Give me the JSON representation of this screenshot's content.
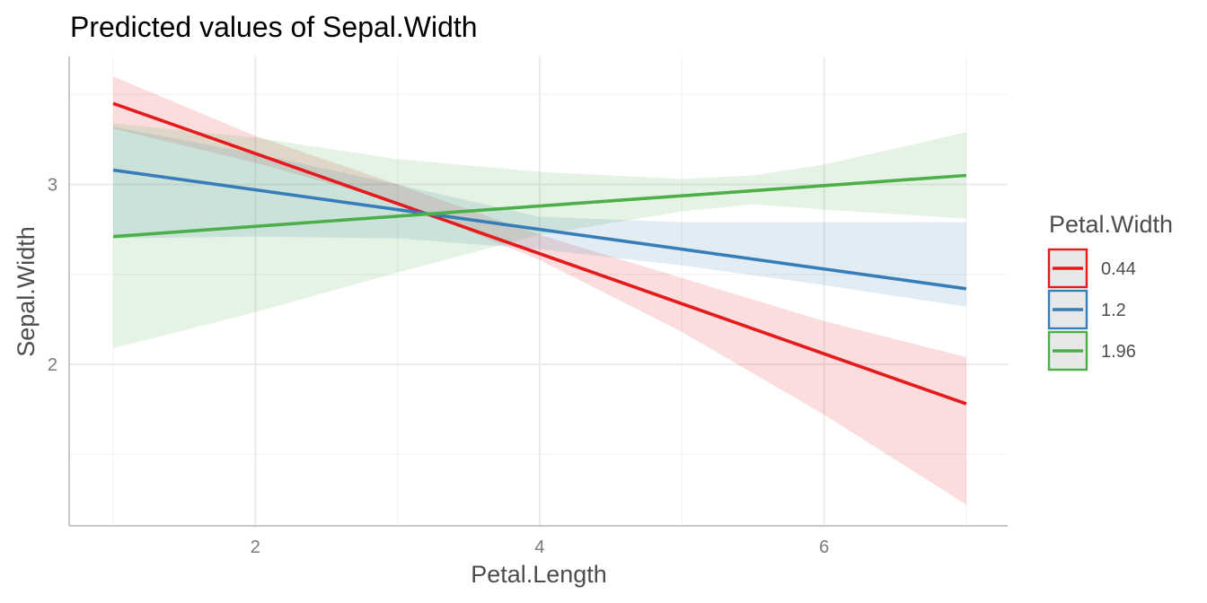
{
  "chart_data": {
    "type": "line",
    "title": "Predicted values of Sepal.Width",
    "xlabel": "Petal.Length",
    "ylabel": "Sepal.Width",
    "xlim": [
      1.0,
      7.0
    ],
    "ylim": [
      1.2,
      3.6
    ],
    "x_ticks": [
      2,
      4,
      6
    ],
    "y_ticks": [
      2,
      3
    ],
    "grid": true,
    "legend": {
      "title": "Petal.Width",
      "position": "right"
    },
    "series": [
      {
        "name": "0.44",
        "color": "#e41a1c",
        "x": [
          1.0,
          7.0
        ],
        "y": [
          3.45,
          1.78
        ],
        "ci_x": [
          1.0,
          2.0,
          3.0,
          4.0,
          5.0,
          6.0,
          7.0
        ],
        "ci_lower": [
          3.31,
          3.12,
          2.9,
          2.58,
          2.18,
          1.72,
          1.22
        ],
        "ci_upper": [
          3.6,
          3.27,
          3.0,
          2.72,
          2.48,
          2.24,
          2.04
        ]
      },
      {
        "name": "1.2",
        "color": "#377eb8",
        "x": [
          1.0,
          7.0
        ],
        "y": [
          3.08,
          2.42
        ],
        "ci_x": [
          1.0,
          2.0,
          3.0,
          4.0,
          5.0,
          6.0,
          7.0
        ],
        "ci_lower": [
          2.7,
          2.71,
          2.7,
          2.64,
          2.55,
          2.44,
          2.32
        ],
        "ci_upper": [
          3.32,
          3.17,
          3.0,
          2.82,
          2.79,
          2.79,
          2.79
        ]
      },
      {
        "name": "1.96",
        "color": "#4daf4a",
        "x": [
          1.0,
          7.0
        ],
        "y": [
          2.71,
          3.05
        ],
        "ci_x": [
          1.0,
          2.0,
          3.0,
          4.0,
          5.0,
          5.5,
          6.0,
          7.0
        ],
        "ci_lower": [
          2.09,
          2.29,
          2.51,
          2.72,
          2.85,
          2.89,
          2.86,
          2.81
        ],
        "ci_upper": [
          3.34,
          3.26,
          3.14,
          3.07,
          3.03,
          3.05,
          3.11,
          3.29
        ]
      }
    ]
  }
}
